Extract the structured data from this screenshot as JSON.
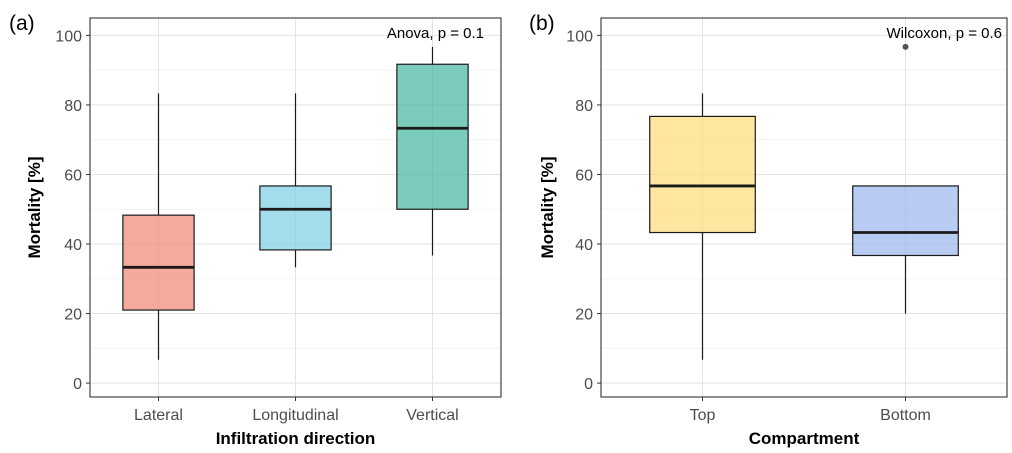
{
  "chart_data": [
    {
      "type": "box",
      "panel_label": "(a)",
      "xlabel": "Infiltration direction",
      "ylabel": "Mortality [%]",
      "ylim": [
        -4,
        105
      ],
      "yticks": [
        0,
        20,
        40,
        60,
        80,
        100
      ],
      "grid": true,
      "annotation": "Anova, p = 0.1",
      "categories": [
        "Lateral",
        "Longitudinal",
        "Vertical"
      ],
      "boxes": [
        {
          "min": 6.7,
          "q1": 21.0,
          "median": 33.3,
          "q3": 48.3,
          "max": 83.3,
          "outliers": [],
          "color": "#f08a78"
        },
        {
          "min": 33.3,
          "q1": 38.3,
          "median": 50.0,
          "q3": 56.7,
          "max": 83.3,
          "outliers": [],
          "color": "#7fd0e3"
        },
        {
          "min": 36.7,
          "q1": 50.0,
          "median": 73.3,
          "q3": 91.7,
          "max": 96.7,
          "outliers": [],
          "color": "#49b9a3"
        }
      ]
    },
    {
      "type": "box",
      "panel_label": "(b)",
      "xlabel": "Compartment",
      "ylabel": "Mortality [%]",
      "ylim": [
        -4,
        105
      ],
      "yticks": [
        0,
        20,
        40,
        60,
        80,
        100
      ],
      "grid": true,
      "annotation": "Wilcoxon, p = 0.6",
      "categories": [
        "Top",
        "Bottom"
      ],
      "boxes": [
        {
          "min": 6.7,
          "q1": 43.3,
          "median": 56.7,
          "q3": 76.7,
          "max": 83.3,
          "outliers": [],
          "color": "#fddc7a"
        },
        {
          "min": 20.0,
          "q1": 36.7,
          "median": 43.3,
          "q3": 56.7,
          "max": 56.7,
          "outliers": [
            96.7
          ],
          "color": "#9db7ed"
        }
      ]
    }
  ]
}
